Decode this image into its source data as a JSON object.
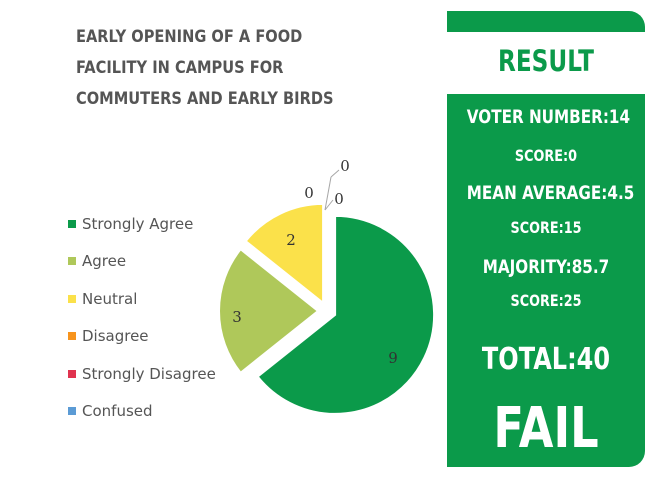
{
  "chart_data": {
    "type": "pie",
    "title": "EARLY OPENING OF A FOOD FACILITY IN CAMPUS FOR COMMUTERS AND EARLY BIRDS",
    "categories": [
      "Strongly Agree",
      "Agree",
      "Neutral",
      "Disagree",
      "Strongly Disagree",
      "Confused"
    ],
    "values": [
      9,
      3,
      2,
      0,
      0,
      0
    ],
    "colors": [
      "#0b9a4a",
      "#afc85a",
      "#fbe14a",
      "#f7941d",
      "#e0334f",
      "#5b9bd5"
    ],
    "data_labels": [
      "9",
      "3",
      "2",
      "0",
      "0",
      "0"
    ],
    "exploded": true,
    "legend_position": "left"
  },
  "result_panel": {
    "heading": "RESULT",
    "voter_number": "VOTER NUMBER:14",
    "score_1": "SCORE:0",
    "mean_average": "MEAN AVERAGE:4.5",
    "score_2": "SCORE:15",
    "majority": "MAJORITY:85.7",
    "score_3": "SCORE:25",
    "total": "TOTAL:40",
    "verdict": "FAIL"
  }
}
